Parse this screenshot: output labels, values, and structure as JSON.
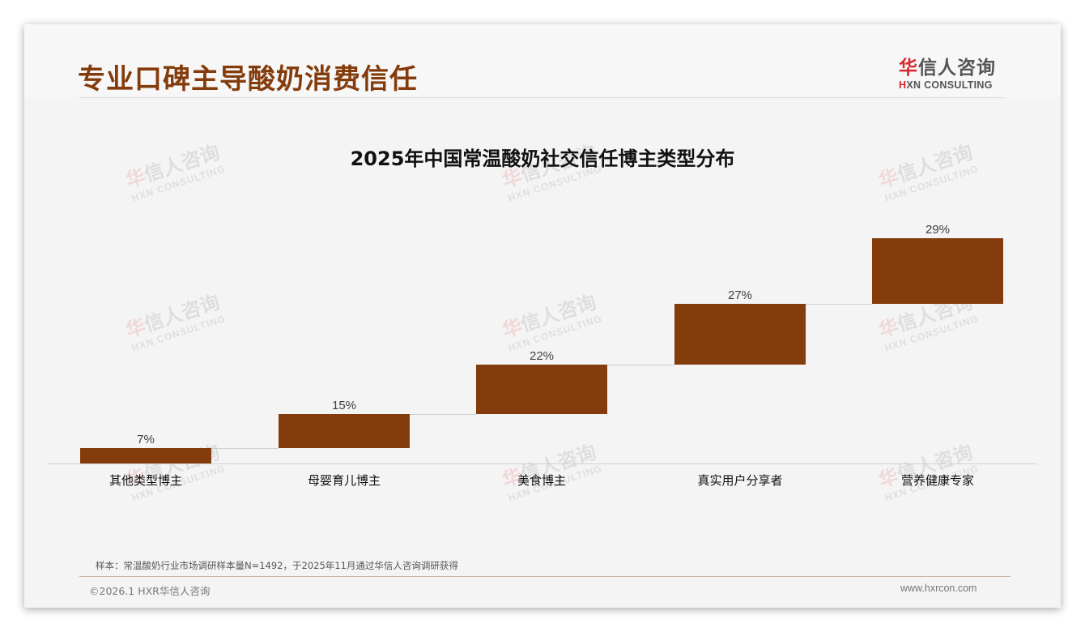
{
  "header": {
    "title": "专业口碑主导酸奶消费信任",
    "logo": {
      "cn_accent": "华",
      "cn_rest": "信人咨询",
      "en_accent": "H",
      "en_rest": "XN CONSULTING"
    }
  },
  "watermark": {
    "cn_accent": "华",
    "cn_rest": "信人咨询",
    "en": "HXN CONSULTING"
  },
  "chart_data": {
    "type": "bar",
    "subtype": "waterfall",
    "title": "2025年中国常温酸奶社交信任博主类型分布",
    "categories": [
      "其他类型博主",
      "母婴育儿博主",
      "美食博主",
      "真实用户分享者",
      "营养健康专家"
    ],
    "values": [
      7,
      15,
      22,
      27,
      29
    ],
    "value_labels": [
      "7%",
      "15%",
      "22%",
      "27%",
      "29%"
    ],
    "cumulative_end": [
      7,
      22,
      44,
      71,
      100
    ],
    "unit": "%",
    "xlabel": "",
    "ylabel": "",
    "ylim": [
      0,
      100
    ],
    "grid": false,
    "legend": null,
    "bar_color": "#843c0c"
  },
  "footer": {
    "note": "样本：常温酸奶行业市场调研样本量N=1492，于2025年11月通过华信人咨询调研获得",
    "copyright": "©2026.1 HXR华信人咨询",
    "website": "www.hxrcon.com"
  },
  "colors": {
    "title": "#843c0c",
    "bar": "#843c0c",
    "logo_accent": "#d9272d",
    "background": "#f4f4f4"
  }
}
